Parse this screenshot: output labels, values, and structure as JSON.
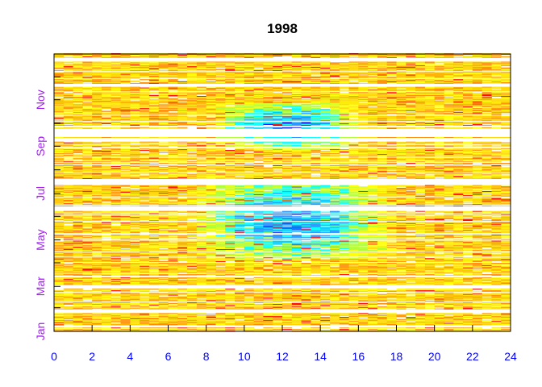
{
  "chart_data": {
    "type": "heatmap",
    "title": "1998",
    "xlabel": "",
    "ylabel": "",
    "xlim": [
      0,
      24
    ],
    "x_ticks": [
      0,
      2,
      4,
      6,
      8,
      10,
      12,
      14,
      16,
      18,
      20,
      22,
      24
    ],
    "x_tick_labels": [
      "0",
      "2",
      "4",
      "6",
      "8",
      "10",
      "12",
      "14",
      "16",
      "18",
      "20",
      "22",
      "24"
    ],
    "ylim_day_of_year": [
      1,
      365
    ],
    "y_ticks_day_of_year": [
      1,
      60,
      121,
      182,
      244,
      305
    ],
    "y_tick_labels": [
      "Jan",
      "Mar",
      "May",
      "Jul",
      "Sep",
      "Nov"
    ],
    "x_axis_label_color": "#0000ff",
    "y_axis_label_color": "#a020f0",
    "color_scale": [
      "#ff0000",
      "#ff8c00",
      "#ffd700",
      "#ffff00",
      "#adff2f",
      "#00ffff",
      "#1e90ff",
      "#0000ff"
    ],
    "gap_ranges_day_of_year": [
      [
        6,
        8
      ],
      [
        25,
        29
      ],
      [
        58,
        61
      ],
      [
        160,
        164
      ],
      [
        193,
        200
      ],
      [
        250,
        254
      ],
      [
        256,
        266
      ],
      [
        322,
        325
      ],
      [
        355,
        358
      ]
    ],
    "low_value_regions": [
      {
        "hours": [
          7,
          18
        ],
        "days_of_year": [
          96,
          200
        ]
      },
      {
        "hours": [
          8,
          16.5
        ],
        "days_of_year": [
          240,
          300
        ]
      }
    ]
  }
}
